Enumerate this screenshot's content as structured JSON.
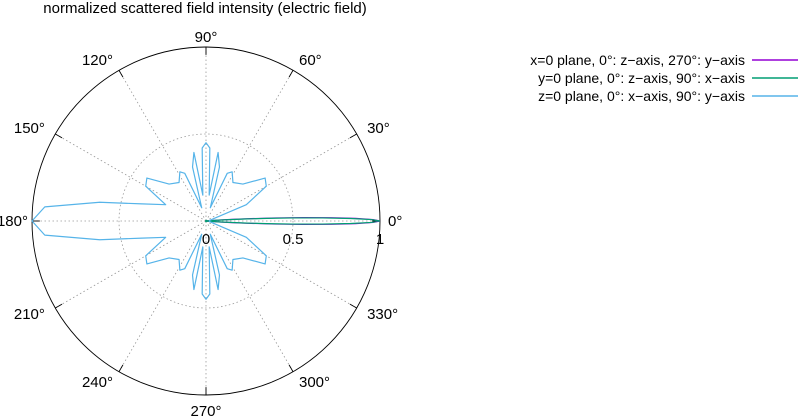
{
  "chart_data": {
    "type": "line",
    "subtype": "polar",
    "title": "normalized scattered field intensity (electric field)",
    "radial_range": [
      0,
      1
    ],
    "radial_ticks": [
      {
        "value": 0,
        "label": "0"
      },
      {
        "value": 0.5,
        "label": "0.5"
      },
      {
        "value": 1,
        "label": "1"
      }
    ],
    "angular_ticks": [
      {
        "deg": 0,
        "label": "0°"
      },
      {
        "deg": 30,
        "label": "30°"
      },
      {
        "deg": 60,
        "label": "60°"
      },
      {
        "deg": 90,
        "label": "90°"
      },
      {
        "deg": 120,
        "label": "120°"
      },
      {
        "deg": 150,
        "label": "150°"
      },
      {
        "deg": 180,
        "label": "180°"
      },
      {
        "deg": 210,
        "label": "210°"
      },
      {
        "deg": 240,
        "label": "240°"
      },
      {
        "deg": 270,
        "label": "270°"
      },
      {
        "deg": 300,
        "label": "300°"
      },
      {
        "deg": 330,
        "label": "330°"
      }
    ],
    "grid": true,
    "legend_position": "top-right",
    "series": [
      {
        "name": "x=0 plane, 0°: z−axis, 270°: y−axis",
        "color": "#9400d3",
        "points": [
          [
            0,
            1.0
          ],
          [
            0.5,
            0.96
          ],
          [
            1,
            0.86
          ],
          [
            1.5,
            0.72
          ],
          [
            2,
            0.56
          ],
          [
            2.5,
            0.4
          ],
          [
            3,
            0.26
          ],
          [
            3.5,
            0.15
          ],
          [
            4,
            0.08
          ],
          [
            5,
            0.03
          ],
          [
            7,
            0.012
          ],
          [
            10,
            0.006
          ],
          [
            20,
            0.003
          ],
          [
            90,
            0.001
          ],
          [
            180,
            0.0
          ],
          [
            270,
            0.001
          ],
          [
            340,
            0.003
          ],
          [
            350,
            0.006
          ],
          [
            353,
            0.012
          ],
          [
            355,
            0.03
          ],
          [
            356,
            0.08
          ],
          [
            356.5,
            0.15
          ],
          [
            357,
            0.26
          ],
          [
            357.5,
            0.4
          ],
          [
            358,
            0.56
          ],
          [
            358.5,
            0.72
          ],
          [
            359,
            0.86
          ],
          [
            359.5,
            0.96
          ],
          [
            360,
            1.0
          ]
        ]
      },
      {
        "name": "y=0 plane, 0°: z−axis,   90°: x−axis",
        "color": "#009e73",
        "points": [
          [
            0,
            1.0
          ],
          [
            0.5,
            0.95
          ],
          [
            1,
            0.83
          ],
          [
            1.5,
            0.67
          ],
          [
            2,
            0.5
          ],
          [
            2.5,
            0.35
          ],
          [
            3,
            0.22
          ],
          [
            3.5,
            0.12
          ],
          [
            4,
            0.06
          ],
          [
            5,
            0.02
          ],
          [
            8,
            0.01
          ],
          [
            20,
            0.005
          ],
          [
            90,
            0.004
          ],
          [
            180,
            0.003
          ],
          [
            270,
            0.004
          ],
          [
            340,
            0.005
          ],
          [
            352,
            0.01
          ],
          [
            355,
            0.02
          ],
          [
            356,
            0.06
          ],
          [
            356.5,
            0.12
          ],
          [
            357,
            0.22
          ],
          [
            357.5,
            0.35
          ],
          [
            358,
            0.5
          ],
          [
            358.5,
            0.67
          ],
          [
            359,
            0.83
          ],
          [
            359.5,
            0.95
          ],
          [
            360,
            1.0
          ]
        ]
      },
      {
        "name": "z=0 plane, 0°: x−axis,   90°: y−axis",
        "color": "#56b4e9",
        "points": [
          [
            0,
            0.02
          ],
          [
            10,
            0.02
          ],
          [
            22,
            0.25
          ],
          [
            30,
            0.4
          ],
          [
            36,
            0.42
          ],
          [
            45,
            0.3
          ],
          [
            55,
            0.27
          ],
          [
            62,
            0.32
          ],
          [
            66,
            0.3
          ],
          [
            72,
            0.08
          ],
          [
            76,
            0.32
          ],
          [
            80,
            0.4
          ],
          [
            83,
            0.15
          ],
          [
            87,
            0.42
          ],
          [
            90,
            0.45
          ],
          [
            93,
            0.42
          ],
          [
            97,
            0.15
          ],
          [
            100,
            0.4
          ],
          [
            104,
            0.32
          ],
          [
            108,
            0.08
          ],
          [
            114,
            0.3
          ],
          [
            118,
            0.32
          ],
          [
            125,
            0.27
          ],
          [
            135,
            0.3
          ],
          [
            144,
            0.42
          ],
          [
            150,
            0.4
          ],
          [
            158,
            0.25
          ],
          [
            165,
            0.38
          ],
          [
            170,
            0.62
          ],
          [
            175,
            0.93
          ],
          [
            180,
            1.0
          ],
          [
            185,
            0.93
          ],
          [
            190,
            0.62
          ],
          [
            195,
            0.38
          ],
          [
            202,
            0.25
          ],
          [
            210,
            0.4
          ],
          [
            216,
            0.42
          ],
          [
            225,
            0.3
          ],
          [
            235,
            0.27
          ],
          [
            242,
            0.32
          ],
          [
            246,
            0.3
          ],
          [
            252,
            0.08
          ],
          [
            256,
            0.32
          ],
          [
            260,
            0.4
          ],
          [
            263,
            0.15
          ],
          [
            267,
            0.42
          ],
          [
            270,
            0.45
          ],
          [
            273,
            0.42
          ],
          [
            277,
            0.15
          ],
          [
            280,
            0.4
          ],
          [
            284,
            0.32
          ],
          [
            288,
            0.08
          ],
          [
            294,
            0.3
          ],
          [
            298,
            0.32
          ],
          [
            305,
            0.27
          ],
          [
            315,
            0.3
          ],
          [
            324,
            0.42
          ],
          [
            330,
            0.4
          ],
          [
            338,
            0.25
          ],
          [
            350,
            0.02
          ],
          [
            360,
            0.02
          ]
        ]
      }
    ]
  }
}
